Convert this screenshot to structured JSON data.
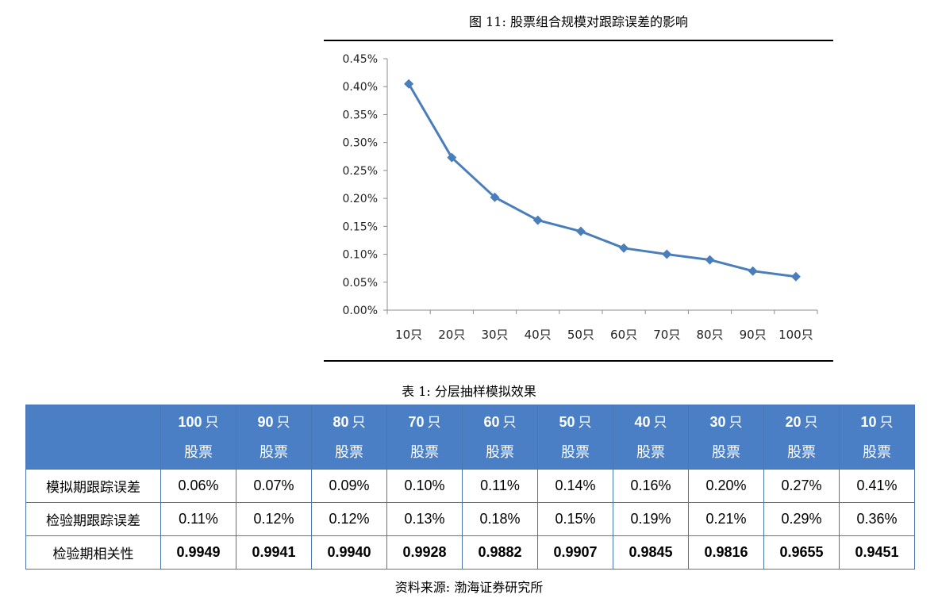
{
  "figure": {
    "title": "图 11: 股票组合规模对跟踪误差的影响"
  },
  "chart_data": {
    "type": "line",
    "categories": [
      "10只",
      "20只",
      "30只",
      "40只",
      "50只",
      "60只",
      "70只",
      "80只",
      "90只",
      "100只"
    ],
    "values": [
      0.405,
      0.273,
      0.202,
      0.161,
      0.141,
      0.111,
      0.1,
      0.09,
      0.07,
      0.06
    ],
    "y_ticks": [
      "0.00%",
      "0.05%",
      "0.10%",
      "0.15%",
      "0.20%",
      "0.25%",
      "0.30%",
      "0.35%",
      "0.40%",
      "0.45%"
    ],
    "ylim": [
      0,
      0.45
    ],
    "unit": "%",
    "grid": false,
    "color": "#4a7ebb",
    "marker": "diamond"
  },
  "table": {
    "title": "表 1: 分层抽样模拟效果",
    "headers": [
      {
        "num": "100",
        "unit": "只",
        "sub": "股票"
      },
      {
        "num": "90",
        "unit": "只",
        "sub": "股票"
      },
      {
        "num": "80",
        "unit": "只",
        "sub": "股票"
      },
      {
        "num": "70",
        "unit": "只",
        "sub": "股票"
      },
      {
        "num": "60",
        "unit": "只",
        "sub": "股票"
      },
      {
        "num": "50",
        "unit": "只",
        "sub": "股票"
      },
      {
        "num": "40",
        "unit": "只",
        "sub": "股票"
      },
      {
        "num": "30",
        "unit": "只",
        "sub": "股票"
      },
      {
        "num": "20",
        "unit": "只",
        "sub": "股票"
      },
      {
        "num": "10",
        "unit": "只",
        "sub": "股票"
      }
    ],
    "rows": [
      {
        "label": "模拟期跟踪误差",
        "values": [
          "0.06%",
          "0.07%",
          "0.09%",
          "0.10%",
          "0.11%",
          "0.14%",
          "0.16%",
          "0.20%",
          "0.27%",
          "0.41%"
        ]
      },
      {
        "label": "检验期跟踪误差",
        "values": [
          "0.11%",
          "0.12%",
          "0.12%",
          "0.13%",
          "0.18%",
          "0.15%",
          "0.19%",
          "0.21%",
          "0.29%",
          "0.36%"
        ]
      },
      {
        "label": "检验期相关性",
        "values": [
          "0.9949",
          "0.9941",
          "0.9940",
          "0.9928",
          "0.9882",
          "0.9907",
          "0.9845",
          "0.9816",
          "0.9655",
          "0.9451"
        ]
      }
    ],
    "header_color": "#4a7fc5",
    "border_color": "#4a77b4"
  },
  "source": "资料来源: 渤海证券研究所"
}
